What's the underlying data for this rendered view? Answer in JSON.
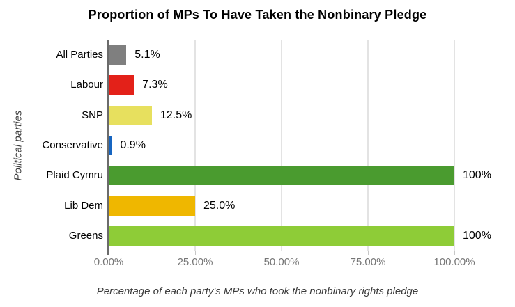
{
  "chart_data": {
    "type": "bar",
    "orientation": "horizontal",
    "title": "Proportion of MPs To Have Taken the Nonbinary Pledge",
    "xlabel": "Percentage of each party's MPs who took the nonbinary rights pledge",
    "ylabel": "Political parties",
    "categories": [
      "All Parties",
      "Labour",
      "SNP",
      "Conservative",
      "Plaid Cymru",
      "Lib Dem",
      "Greens"
    ],
    "values": [
      5.1,
      7.3,
      12.5,
      0.9,
      100,
      25.0,
      100
    ],
    "value_labels": [
      "5.1%",
      "7.3%",
      "12.5%",
      "0.9%",
      "100%",
      "25.0%",
      "100%"
    ],
    "bar_colors": [
      "#7f7f7f",
      "#e32119",
      "#e7e05e",
      "#1665c1",
      "#4a9b2f",
      "#efb700",
      "#8ecc37"
    ],
    "xlim": [
      0,
      100
    ],
    "x_ticks": [
      {
        "value": 0,
        "label": "0.00%"
      },
      {
        "value": 25,
        "label": "25.00%"
      },
      {
        "value": 50,
        "label": "50.00%"
      },
      {
        "value": 75,
        "label": "75.00%"
      },
      {
        "value": 100,
        "label": "100.00%"
      }
    ],
    "grid": true,
    "legend": false
  },
  "style_colors": {
    "background": "#ffffff",
    "gridline": "#e3e3e3",
    "axis_line": "#6b6b6b",
    "tick_mark": "#c7c7c7",
    "tick_label": "#757575",
    "axis_title": "#3c3c3c",
    "title_text": "#000000",
    "bar_label": "#000000",
    "category_label": "#000000"
  }
}
